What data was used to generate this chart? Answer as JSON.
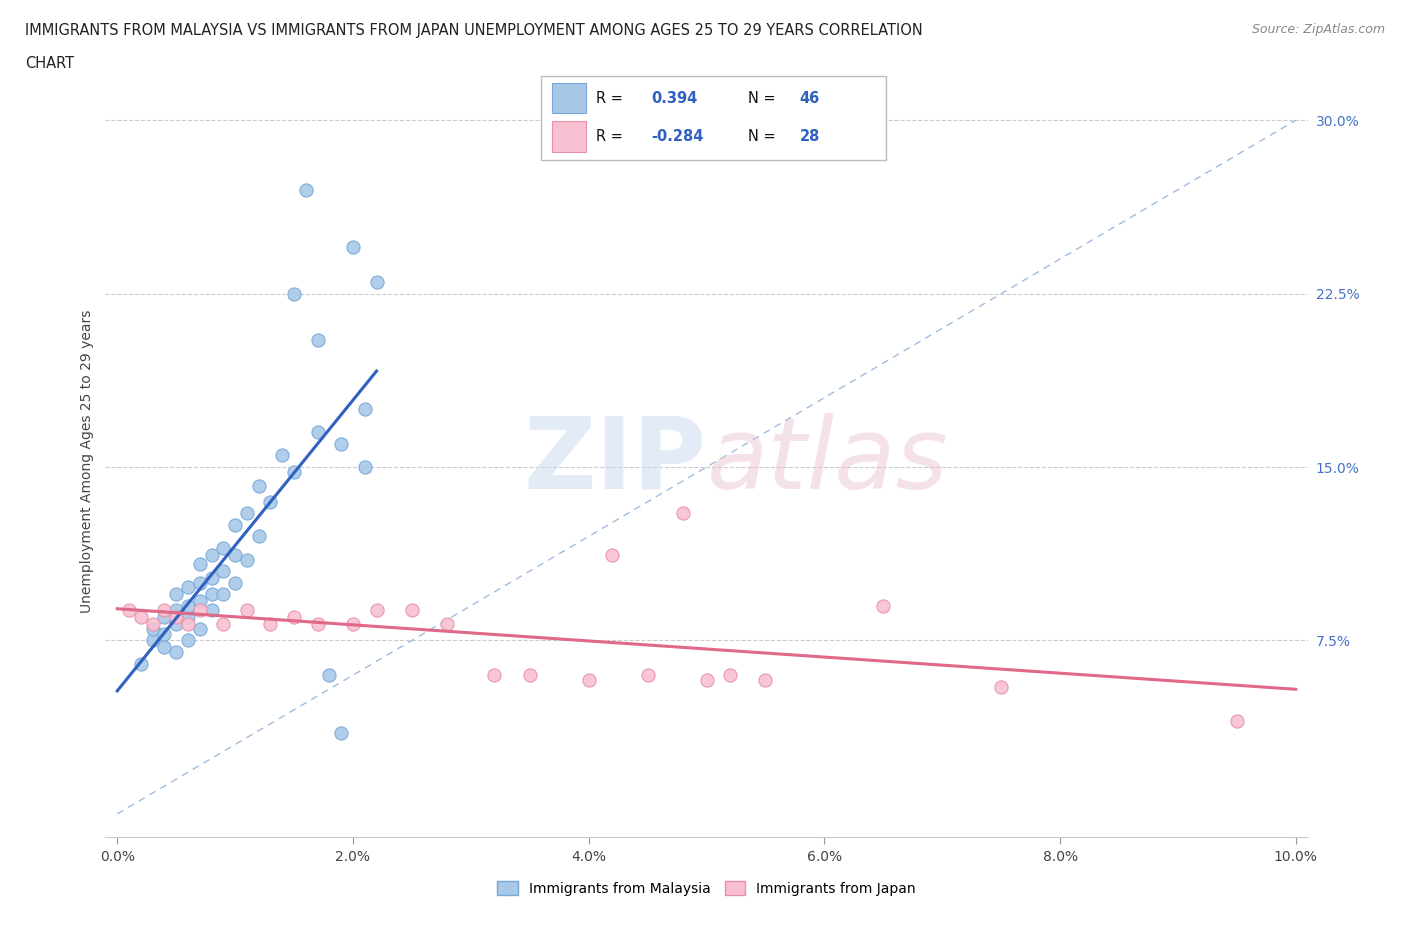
{
  "title_line1": "IMMIGRANTS FROM MALAYSIA VS IMMIGRANTS FROM JAPAN UNEMPLOYMENT AMONG AGES 25 TO 29 YEARS CORRELATION",
  "title_line2": "CHART",
  "source_text": "Source: ZipAtlas.com",
  "ylabel": "Unemployment Among Ages 25 to 29 years",
  "xlim": [
    -0.001,
    0.101
  ],
  "ylim": [
    -0.01,
    0.315
  ],
  "xticks": [
    0.0,
    0.02,
    0.04,
    0.06,
    0.08,
    0.1
  ],
  "xtick_labels": [
    "0.0%",
    "2.0%",
    "4.0%",
    "6.0%",
    "8.0%",
    "10.0%"
  ],
  "yticks": [
    0.075,
    0.15,
    0.225,
    0.3
  ],
  "ytick_labels": [
    "7.5%",
    "15.0%",
    "22.5%",
    "30.0%"
  ],
  "malaysia_color": "#a8c8e8",
  "malaysia_edge": "#78a8d8",
  "japan_color": "#f8c0d0",
  "japan_edge": "#e890a8",
  "malaysia_line_color": "#3060c0",
  "japan_line_color": "#e06888",
  "diag_line_color": "#90b0d8",
  "malaysia_x": [
    0.002,
    0.003,
    0.003,
    0.004,
    0.004,
    0.004,
    0.005,
    0.005,
    0.005,
    0.005,
    0.006,
    0.006,
    0.006,
    0.006,
    0.007,
    0.007,
    0.007,
    0.007,
    0.008,
    0.008,
    0.008,
    0.008,
    0.009,
    0.009,
    0.009,
    0.01,
    0.01,
    0.01,
    0.011,
    0.011,
    0.012,
    0.012,
    0.013,
    0.014,
    0.015,
    0.016,
    0.017,
    0.018,
    0.019,
    0.02,
    0.021,
    0.022,
    0.015,
    0.017,
    0.019,
    0.021
  ],
  "malaysia_y": [
    0.065,
    0.075,
    0.08,
    0.072,
    0.078,
    0.085,
    0.07,
    0.082,
    0.088,
    0.095,
    0.075,
    0.085,
    0.09,
    0.098,
    0.08,
    0.092,
    0.1,
    0.108,
    0.088,
    0.095,
    0.102,
    0.112,
    0.095,
    0.105,
    0.115,
    0.1,
    0.112,
    0.125,
    0.11,
    0.13,
    0.12,
    0.142,
    0.135,
    0.155,
    0.148,
    0.27,
    0.205,
    0.06,
    0.035,
    0.245,
    0.175,
    0.23,
    0.225,
    0.165,
    0.16,
    0.15
  ],
  "japan_x": [
    0.001,
    0.002,
    0.003,
    0.004,
    0.005,
    0.006,
    0.007,
    0.009,
    0.011,
    0.013,
    0.015,
    0.017,
    0.02,
    0.022,
    0.025,
    0.028,
    0.032,
    0.035,
    0.04,
    0.042,
    0.045,
    0.048,
    0.05,
    0.052,
    0.055,
    0.065,
    0.075,
    0.095
  ],
  "japan_y": [
    0.088,
    0.085,
    0.082,
    0.088,
    0.085,
    0.082,
    0.088,
    0.082,
    0.088,
    0.082,
    0.085,
    0.082,
    0.082,
    0.088,
    0.088,
    0.082,
    0.06,
    0.06,
    0.058,
    0.112,
    0.06,
    0.13,
    0.058,
    0.06,
    0.058,
    0.09,
    0.055,
    0.04
  ]
}
